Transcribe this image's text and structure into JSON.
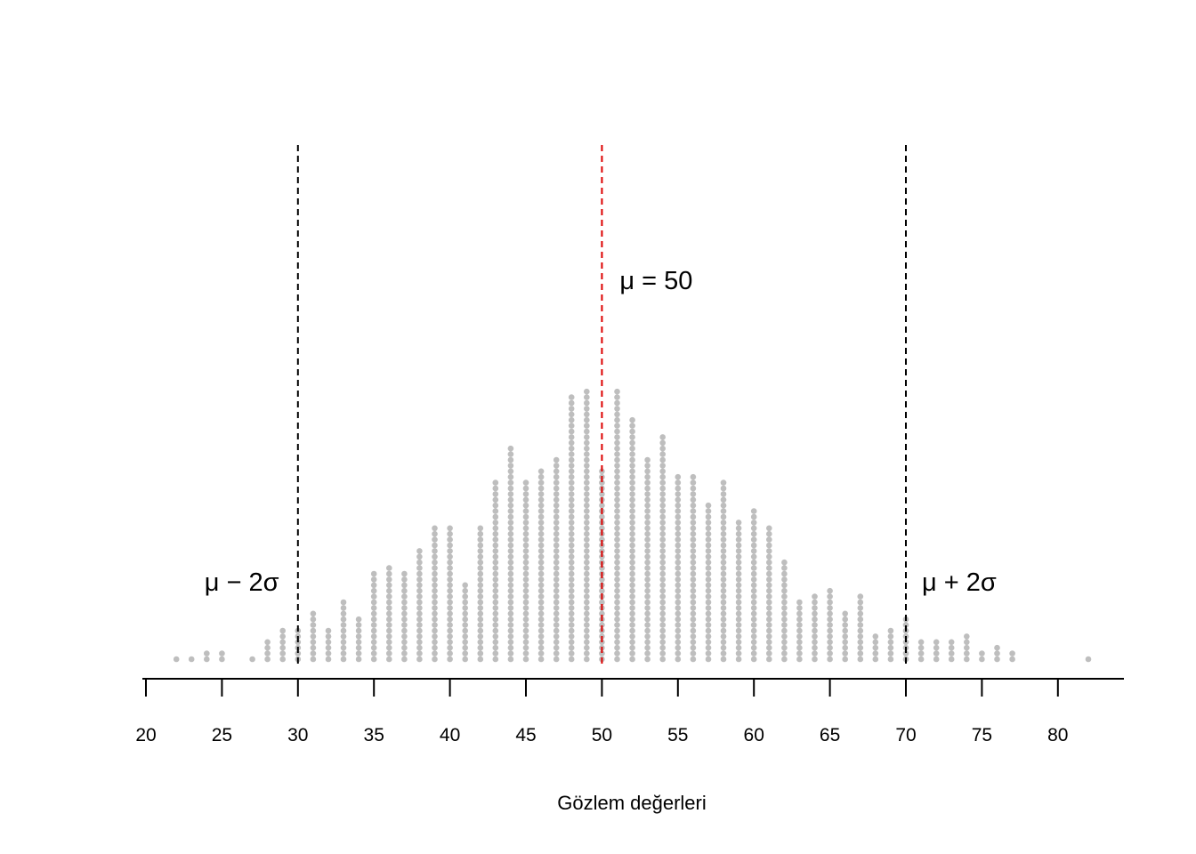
{
  "chart_data": {
    "type": "dotplot",
    "title": "",
    "xlabel": "Gözlem değerleri",
    "ylabel": "",
    "xlim": [
      20,
      82
    ],
    "x_ticks": [
      20,
      25,
      30,
      35,
      40,
      45,
      50,
      55,
      60,
      65,
      70,
      75,
      80
    ],
    "x_tick_labels": [
      "20",
      "25",
      "30",
      "35",
      "40",
      "45",
      "50",
      "55",
      "60",
      "65",
      "70",
      "75",
      "80"
    ],
    "grid": false,
    "dot_color": "#bebebe",
    "points": [
      {
        "x": 22,
        "count": 1
      },
      {
        "x": 23,
        "count": 1
      },
      {
        "x": 24,
        "count": 2
      },
      {
        "x": 25,
        "count": 2
      },
      {
        "x": 27,
        "count": 1
      },
      {
        "x": 28,
        "count": 4
      },
      {
        "x": 29,
        "count": 6
      },
      {
        "x": 30,
        "count": 6
      },
      {
        "x": 31,
        "count": 9
      },
      {
        "x": 32,
        "count": 6
      },
      {
        "x": 33,
        "count": 11
      },
      {
        "x": 34,
        "count": 8
      },
      {
        "x": 35,
        "count": 16
      },
      {
        "x": 36,
        "count": 17
      },
      {
        "x": 37,
        "count": 16
      },
      {
        "x": 38,
        "count": 20
      },
      {
        "x": 39,
        "count": 24
      },
      {
        "x": 40,
        "count": 24
      },
      {
        "x": 41,
        "count": 14
      },
      {
        "x": 42,
        "count": 24
      },
      {
        "x": 43,
        "count": 32
      },
      {
        "x": 44,
        "count": 38
      },
      {
        "x": 45,
        "count": 32
      },
      {
        "x": 46,
        "count": 34
      },
      {
        "x": 47,
        "count": 36
      },
      {
        "x": 48,
        "count": 47
      },
      {
        "x": 49,
        "count": 48
      },
      {
        "x": 50,
        "count": 34
      },
      {
        "x": 51,
        "count": 48
      },
      {
        "x": 52,
        "count": 43
      },
      {
        "x": 53,
        "count": 36
      },
      {
        "x": 54,
        "count": 40
      },
      {
        "x": 55,
        "count": 33
      },
      {
        "x": 56,
        "count": 33
      },
      {
        "x": 57,
        "count": 28
      },
      {
        "x": 58,
        "count": 32
      },
      {
        "x": 59,
        "count": 25
      },
      {
        "x": 60,
        "count": 27
      },
      {
        "x": 61,
        "count": 24
      },
      {
        "x": 62,
        "count": 18
      },
      {
        "x": 63,
        "count": 11
      },
      {
        "x": 64,
        "count": 12
      },
      {
        "x": 65,
        "count": 13
      },
      {
        "x": 66,
        "count": 9
      },
      {
        "x": 67,
        "count": 12
      },
      {
        "x": 68,
        "count": 5
      },
      {
        "x": 69,
        "count": 6
      },
      {
        "x": 70,
        "count": 8
      },
      {
        "x": 71,
        "count": 4
      },
      {
        "x": 72,
        "count": 4
      },
      {
        "x": 73,
        "count": 4
      },
      {
        "x": 74,
        "count": 5
      },
      {
        "x": 75,
        "count": 2
      },
      {
        "x": 76,
        "count": 3
      },
      {
        "x": 77,
        "count": 2
      },
      {
        "x": 82,
        "count": 1
      }
    ],
    "reference_lines": [
      {
        "x": 30,
        "color": "#000000",
        "style": "dashed",
        "label": "μ − 2σ"
      },
      {
        "x": 50,
        "color": "#dd0000",
        "style": "dashed",
        "label": "μ = 50"
      },
      {
        "x": 70,
        "color": "#000000",
        "style": "dashed",
        "label": "μ + 2σ"
      }
    ]
  }
}
